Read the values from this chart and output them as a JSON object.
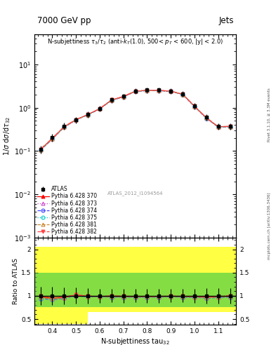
{
  "title_left": "7000 GeV pp",
  "title_right": "Jets",
  "annotation": "N-subjettiness $\\tau_3/\\tau_2$ (anti-$k_T$(1.0), 500< $p_T$ < 600, |y| < 2.0)",
  "watermark": "ATLAS_2012_I1094564",
  "ylabel_main": "1/$\\sigma$ d$\\sigma$/d$\\tau_{32}$",
  "ylabel_ratio": "Ratio to ATLAS",
  "right_label1": "mcplots.cern.ch [arXiv:1306.3436]",
  "right_label2": "Rivet 3.1.10, ≥ 3.3M events",
  "x_data": [
    0.35,
    0.4,
    0.45,
    0.5,
    0.55,
    0.6,
    0.65,
    0.7,
    0.75,
    0.8,
    0.85,
    0.9,
    0.95,
    1.0,
    1.05,
    1.1,
    1.15
  ],
  "atlas_y": [
    0.11,
    0.205,
    0.375,
    0.52,
    0.7,
    0.96,
    1.52,
    1.83,
    2.45,
    2.55,
    2.55,
    2.42,
    2.08,
    1.1,
    0.6,
    0.37,
    0.37
  ],
  "atlas_yerr_lo": [
    0.022,
    0.04,
    0.07,
    0.09,
    0.12,
    0.14,
    0.22,
    0.27,
    0.35,
    0.37,
    0.37,
    0.35,
    0.3,
    0.17,
    0.1,
    0.06,
    0.06
  ],
  "atlas_yerr_hi": [
    0.022,
    0.04,
    0.07,
    0.09,
    0.12,
    0.14,
    0.22,
    0.27,
    0.35,
    0.37,
    0.37,
    0.35,
    0.3,
    0.17,
    0.1,
    0.06,
    0.06
  ],
  "pythia_370_y": [
    0.108,
    0.194,
    0.362,
    0.528,
    0.694,
    0.946,
    1.5,
    1.8,
    2.41,
    2.51,
    2.51,
    2.4,
    2.05,
    1.08,
    0.582,
    0.363,
    0.368
  ],
  "pythia_373_y": [
    0.104,
    0.188,
    0.355,
    0.52,
    0.686,
    0.938,
    1.48,
    1.78,
    2.38,
    2.48,
    2.48,
    2.37,
    2.02,
    1.065,
    0.572,
    0.356,
    0.361
  ],
  "pythia_374_y": [
    0.104,
    0.188,
    0.355,
    0.52,
    0.686,
    0.938,
    1.48,
    1.78,
    2.38,
    2.48,
    2.48,
    2.37,
    2.02,
    1.065,
    0.572,
    0.356,
    0.361
  ],
  "pythia_375_y": [
    0.104,
    0.188,
    0.355,
    0.52,
    0.686,
    0.938,
    1.48,
    1.78,
    2.38,
    2.48,
    2.48,
    2.37,
    2.02,
    1.065,
    0.572,
    0.356,
    0.361
  ],
  "pythia_381_y": [
    0.106,
    0.191,
    0.358,
    0.524,
    0.69,
    0.942,
    1.49,
    1.79,
    2.395,
    2.495,
    2.495,
    2.385,
    2.035,
    1.072,
    0.577,
    0.359,
    0.364
  ],
  "pythia_382_y": [
    0.11,
    0.197,
    0.366,
    0.532,
    0.698,
    0.95,
    1.52,
    1.82,
    2.42,
    2.52,
    2.52,
    2.41,
    2.065,
    1.085,
    0.586,
    0.366,
    0.372
  ],
  "band_x_edges": [
    0.325,
    0.425,
    0.55,
    0.75,
    0.85,
    1.05,
    1.175
  ],
  "band_yellow_lo": [
    0.4,
    0.4,
    0.65,
    0.65,
    0.65,
    0.65
  ],
  "band_yellow_hi": [
    2.05,
    2.05,
    2.05,
    2.05,
    2.05,
    2.05
  ],
  "band_green_lo": [
    0.75,
    0.75,
    0.75,
    0.75,
    0.75,
    0.75
  ],
  "band_green_hi": [
    1.5,
    1.5,
    1.5,
    1.5,
    1.5,
    1.5
  ],
  "xlim": [
    0.325,
    1.175
  ],
  "ylim_main": [
    0.001,
    50
  ],
  "ylim_ratio": [
    0.375,
    2.25
  ],
  "color_atlas": "#000000",
  "color_370": "#ff0000",
  "color_373": "#cc44cc",
  "color_374": "#4444ff",
  "color_375": "#00cccc",
  "color_381": "#cc8833",
  "color_382": "#ff4444",
  "color_yellow": "#ffff44",
  "color_green": "#44cc44"
}
